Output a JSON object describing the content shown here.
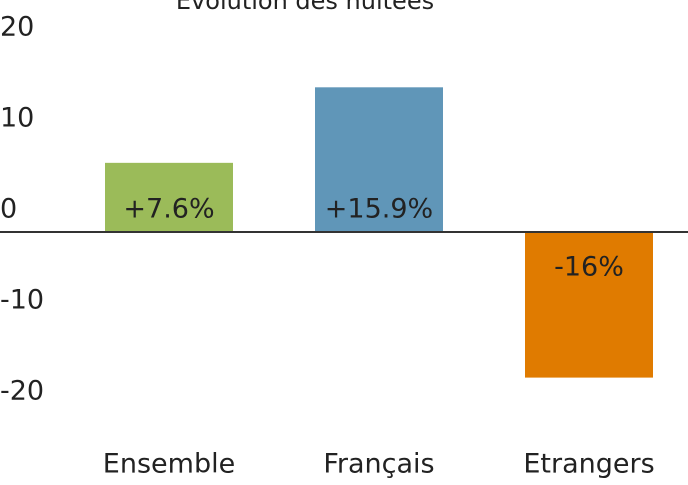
{
  "chart_data": {
    "type": "bar",
    "title": "Evolution des nuitées",
    "categories": [
      "Ensemble",
      "Français",
      "Etrangers"
    ],
    "values": [
      7.6,
      15.9,
      -16
    ],
    "value_labels": [
      "+7.6%",
      "+15.9%",
      "-16%"
    ],
    "colors": [
      "#9bbb59",
      "#6096b8",
      "#e07b00"
    ],
    "ylim": [
      -20,
      20
    ],
    "yticks": [
      -20,
      -10,
      0,
      10,
      20
    ],
    "grid": false
  }
}
